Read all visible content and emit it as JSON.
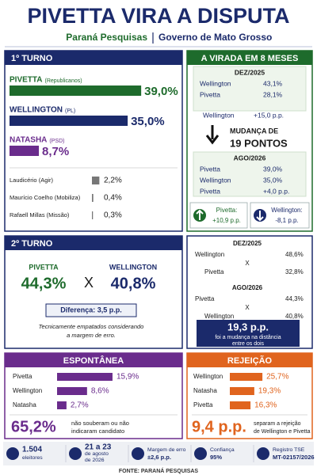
{
  "header": {
    "title": "PIVETTA VIRA A DISPUTA",
    "source": "Paraná Pesquisas",
    "client": "Governo de Mato Grosso"
  },
  "first_round": {
    "title": "1º TURNO",
    "main": [
      {
        "name": "PIVETTA",
        "party": "(Republicanos)",
        "value": 39.0,
        "label": "39,0%",
        "color": "#1e6b2c"
      },
      {
        "name": "WELLINGTON",
        "party": "(PL)",
        "value": 35.0,
        "label": "35,0%",
        "color": "#1b2a6b"
      },
      {
        "name": "NATASHA",
        "party": "(PSD)",
        "value": 8.7,
        "label": "8,7%",
        "color": "#6a2c8c"
      }
    ],
    "others": [
      {
        "name": "Laudicério (Agir)",
        "value": 2.2,
        "label": "2,2%"
      },
      {
        "name": "Maurício Coelho (Mobiliza)",
        "value": 0.4,
        "label": "0,4%"
      },
      {
        "name": "Rafaell Millas (Missão)",
        "value": 0.3,
        "label": "0,3%"
      }
    ]
  },
  "turnaround": {
    "title": "A VIRADA EM 8 MESES",
    "before": {
      "date": "DEZ/2025",
      "rows": [
        {
          "name": "Wellington",
          "label": "43,1%"
        },
        {
          "name": "Pivetta",
          "label": "28,1%"
        }
      ],
      "lead": {
        "name": "Wellington",
        "label": "+15,0 p.p."
      }
    },
    "change": [
      "MUDANÇA DE",
      "19 PONTOS"
    ],
    "after": {
      "date": "AGO/2026",
      "rows": [
        {
          "name": "Pivetta",
          "label": "39,0%"
        },
        {
          "name": "Wellington",
          "label": "35,0%"
        }
      ],
      "lead": {
        "name": "Pivetta",
        "label": "+4,0 p.p."
      }
    },
    "gains": [
      {
        "name": "Pivetta:",
        "label": "+10,9 p.p."
      },
      {
        "name": "Wellington:",
        "label": "-8,1 p.p."
      }
    ]
  },
  "second_round": {
    "title": "2º TURNO",
    "candidates": [
      {
        "name": "PIVETTA",
        "label": "44,3%"
      },
      {
        "name": "WELLINGTON",
        "label": "40,8%"
      }
    ],
    "versus": "X",
    "difference": "Diferença: 3,5 p.p.",
    "note": [
      "Tecnicamente empatados considerando",
      "a margem de erro."
    ]
  },
  "second_round_change": {
    "periods": [
      {
        "date": "DEZ/2025",
        "rows": [
          {
            "name": "Wellington",
            "label": "48,6%"
          },
          {
            "name": "Pivetta",
            "label": "32,8%"
          }
        ]
      },
      {
        "date": "AGO/2026",
        "rows": [
          {
            "name": "Pivetta",
            "label": "44,3%"
          },
          {
            "name": "Wellington",
            "label": "40,8%"
          }
        ]
      }
    ],
    "versus": "X",
    "highlight": "19,3 p.p.",
    "highlight_note": [
      "foi a mudança na distância",
      "entre os dois"
    ]
  },
  "spontaneous": {
    "title": "ESPONTÂNEA",
    "rows": [
      {
        "name": "Pivetta",
        "value": 15.9,
        "label": "15,9%"
      },
      {
        "name": "Wellington",
        "value": 8.6,
        "label": "8,6%"
      },
      {
        "name": "Natasha",
        "value": 2.7,
        "label": "2,7%"
      }
    ],
    "undecided": "65,2%",
    "undecided_note": [
      "não souberam ou não",
      "indicaram candidato"
    ]
  },
  "rejection": {
    "title": "REJEIÇÃO",
    "rows": [
      {
        "name": "Wellington",
        "value": 25.7,
        "label": "25,7%"
      },
      {
        "name": "Natasha",
        "value": 19.3,
        "label": "19,3%"
      },
      {
        "name": "Pivetta",
        "value": 16.3,
        "label": "16,3%"
      }
    ],
    "gap": "9,4 p.p.",
    "gap_note": [
      "separam a rejeição",
      "de Wellington e Pivetta"
    ]
  },
  "footer": {
    "items": [
      {
        "lines": [
          "1.504",
          "eleitores"
        ]
      },
      {
        "lines": [
          "21 a 23",
          "de agosto",
          "de 2026"
        ]
      },
      {
        "lines": [
          "Margem de erro",
          "±2,6 p.p."
        ]
      },
      {
        "lines": [
          "Confiança",
          "95%"
        ]
      },
      {
        "lines": [
          "Registro TSE",
          "MT-02157/2026"
        ]
      }
    ],
    "source": "FONTE: PARANÁ PESQUISAS"
  }
}
